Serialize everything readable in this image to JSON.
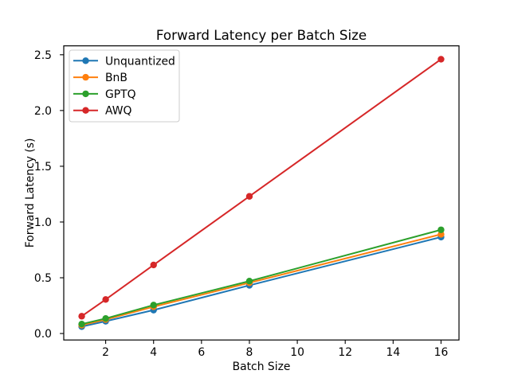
{
  "chart_data": {
    "type": "line",
    "title": "Forward Latency per Batch Size",
    "xlabel": "Batch Size",
    "ylabel": "Forward Latency (s)",
    "x": [
      1,
      2,
      4,
      8,
      16
    ],
    "series": [
      {
        "name": "Unquantized",
        "color": "#1f77b4",
        "values": [
          0.062,
          0.11,
          0.21,
          0.432,
          0.865
        ]
      },
      {
        "name": "BnB",
        "color": "#ff7f0e",
        "values": [
          0.075,
          0.125,
          0.24,
          0.455,
          0.89
        ]
      },
      {
        "name": "GPTQ",
        "color": "#2ca02c",
        "values": [
          0.085,
          0.135,
          0.255,
          0.47,
          0.93
        ]
      },
      {
        "name": "AWQ",
        "color": "#d62728",
        "values": [
          0.155,
          0.305,
          0.615,
          1.23,
          2.46
        ]
      }
    ],
    "xticks": [
      2,
      4,
      6,
      8,
      10,
      12,
      14,
      16
    ],
    "xtick_labels": [
      "2",
      "4",
      "6",
      "8",
      "10",
      "12",
      "14",
      "16"
    ],
    "yticks": [
      0.0,
      0.5,
      1.0,
      1.5,
      2.0,
      2.5
    ],
    "ytick_labels": [
      "0.0",
      "0.5",
      "1.0",
      "1.5",
      "2.0",
      "2.5"
    ],
    "xlim": [
      0.25,
      16.75
    ],
    "ylim": [
      -0.058,
      2.58
    ],
    "legend_position": "upper left",
    "grid": false,
    "marker": "o",
    "background_color": "#ffffff",
    "spine_color": "#000000"
  }
}
